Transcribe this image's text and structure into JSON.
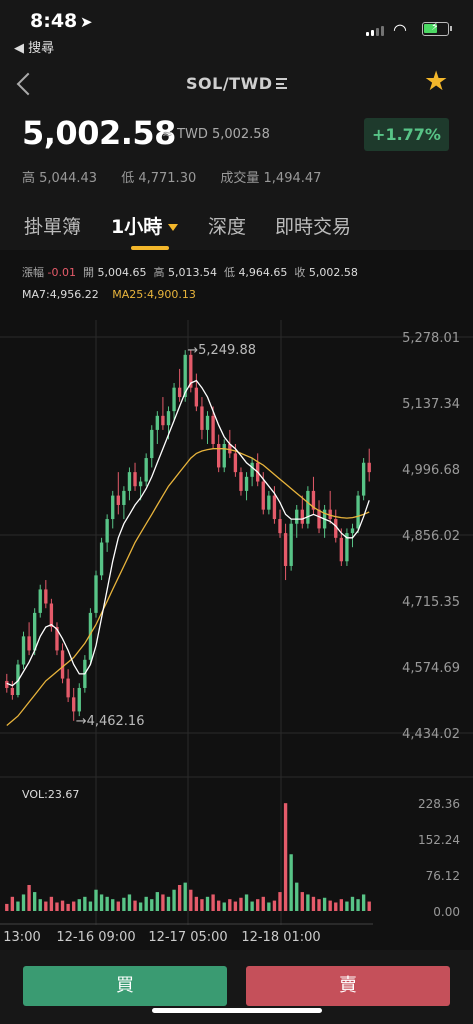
{
  "status": {
    "time": "8:48",
    "back_app": "◀ 搜尋"
  },
  "nav": {
    "pair": "SOL/TWD"
  },
  "ticker": {
    "price": "5,002.58",
    "approx": "≈ TWD 5,002.58",
    "change": "+1.77%",
    "high_label": "高",
    "high": "5,044.43",
    "low_label": "低",
    "low": "4,771.30",
    "volume_label": "成交量",
    "volume": "1,494.47"
  },
  "tabs": [
    {
      "label": "掛單簿"
    },
    {
      "label": "1小時"
    },
    {
      "label": "深度"
    },
    {
      "label": "即時交易"
    }
  ],
  "ohlc": {
    "change_label": "漲幅",
    "change": "-0.01",
    "open_label": "開",
    "open": "5,004.65",
    "high_label": "高",
    "high": "5,013.54",
    "low_label": "低",
    "low": "4,964.65",
    "close_label": "收",
    "close": "5,002.58"
  },
  "ma": {
    "ma7": "MA7:4,956.22",
    "ma25": "MA25:4,900.13"
  },
  "chart_data": {
    "type": "candlestick",
    "y_ticks": [
      "5,278.01",
      "5,137.34",
      "4,996.68",
      "4,856.02",
      "4,715.35",
      "4,574.69",
      "4,434.02"
    ],
    "y_range": [
      4434.02,
      5278.01
    ],
    "max_marker": "→5,249.88",
    "min_marker": "→4,462.16",
    "vol_label": "VOL:23.67",
    "vol_ticks": [
      "228.36",
      "152.24",
      "76.12",
      "0.00"
    ],
    "x_ticks": [
      "13:00",
      "12-16 09:00",
      "12-17 05:00",
      "12-18 01:00"
    ],
    "candles": [
      [
        4545,
        4560,
        4520,
        4530
      ],
      [
        4530,
        4545,
        4505,
        4515
      ],
      [
        4515,
        4590,
        4510,
        4580
      ],
      [
        4580,
        4650,
        4570,
        4640
      ],
      [
        4640,
        4670,
        4600,
        4610
      ],
      [
        4610,
        4700,
        4600,
        4690
      ],
      [
        4690,
        4750,
        4680,
        4740
      ],
      [
        4740,
        4760,
        4700,
        4710
      ],
      [
        4710,
        4720,
        4650,
        4660
      ],
      [
        4660,
        4670,
        4600,
        4610
      ],
      [
        4610,
        4625,
        4540,
        4550
      ],
      [
        4550,
        4570,
        4500,
        4510
      ],
      [
        4510,
        4530,
        4460,
        4480
      ],
      [
        4480,
        4540,
        4470,
        4530
      ],
      [
        4530,
        4600,
        4520,
        4590
      ],
      [
        4590,
        4700,
        4580,
        4690
      ],
      [
        4690,
        4780,
        4680,
        4770
      ],
      [
        4770,
        4850,
        4760,
        4840
      ],
      [
        4840,
        4900,
        4820,
        4890
      ],
      [
        4890,
        4950,
        4870,
        4940
      ],
      [
        4940,
        4990,
        4900,
        4920
      ],
      [
        4920,
        4960,
        4890,
        4950
      ],
      [
        4950,
        5000,
        4930,
        4990
      ],
      [
        4990,
        5010,
        4950,
        4960
      ],
      [
        4960,
        4980,
        4930,
        4970
      ],
      [
        4970,
        5030,
        4960,
        5020
      ],
      [
        5020,
        5090,
        5000,
        5080
      ],
      [
        5080,
        5120,
        5050,
        5110
      ],
      [
        5110,
        5150,
        5080,
        5090
      ],
      [
        5090,
        5130,
        5060,
        5120
      ],
      [
        5120,
        5180,
        5100,
        5170
      ],
      [
        5170,
        5210,
        5140,
        5150
      ],
      [
        5150,
        5250,
        5140,
        5240
      ],
      [
        5240,
        5250,
        5160,
        5170
      ],
      [
        5170,
        5200,
        5120,
        5130
      ],
      [
        5130,
        5150,
        5060,
        5080
      ],
      [
        5080,
        5120,
        5050,
        5110
      ],
      [
        5110,
        5130,
        5040,
        5050
      ],
      [
        5050,
        5070,
        4990,
        5000
      ],
      [
        5000,
        5060,
        4990,
        5050
      ],
      [
        5050,
        5080,
        5020,
        5030
      ],
      [
        5030,
        5050,
        4980,
        4990
      ],
      [
        4990,
        5000,
        4940,
        4950
      ],
      [
        4950,
        4990,
        4930,
        4980
      ],
      [
        4980,
        5020,
        4960,
        5010
      ],
      [
        5010,
        5030,
        4960,
        4970
      ],
      [
        4970,
        4990,
        4900,
        4910
      ],
      [
        4910,
        4950,
        4900,
        4940
      ],
      [
        4940,
        4960,
        4880,
        4890
      ],
      [
        4890,
        4910,
        4850,
        4860
      ],
      [
        4860,
        4880,
        4760,
        4790
      ],
      [
        4790,
        4890,
        4780,
        4880
      ],
      [
        4880,
        4920,
        4850,
        4910
      ],
      [
        4910,
        4940,
        4870,
        4880
      ],
      [
        4880,
        4960,
        4870,
        4950
      ],
      [
        4950,
        4980,
        4900,
        4910
      ],
      [
        4910,
        4930,
        4860,
        4870
      ],
      [
        4870,
        4920,
        4850,
        4910
      ],
      [
        4910,
        4950,
        4880,
        4890
      ],
      [
        4890,
        4910,
        4840,
        4850
      ],
      [
        4850,
        4870,
        4790,
        4800
      ],
      [
        4800,
        4870,
        4790,
        4860
      ],
      [
        4860,
        4880,
        4830,
        4870
      ],
      [
        4870,
        4950,
        4860,
        4940
      ],
      [
        4940,
        5020,
        4930,
        5010
      ],
      [
        5010,
        5040,
        4970,
        4990
      ]
    ],
    "ma7": [
      4540,
      4535,
      4545,
      4565,
      4585,
      4610,
      4640,
      4660,
      4665,
      4655,
      4635,
      4610,
      4580,
      4560,
      4560,
      4580,
      4620,
      4680,
      4740,
      4800,
      4850,
      4880,
      4900,
      4920,
      4935,
      4955,
      4980,
      5010,
      5040,
      5070,
      5100,
      5130,
      5160,
      5180,
      5185,
      5170,
      5150,
      5120,
      5090,
      5065,
      5050,
      5040,
      5025,
      5010,
      5000,
      4990,
      4975,
      4960,
      4945,
      4925,
      4900,
      4890,
      4890,
      4890,
      4895,
      4900,
      4895,
      4890,
      4885,
      4875,
      4860,
      4850,
      4850,
      4865,
      4895,
      4930
    ],
    "ma25": [
      4450,
      4460,
      4470,
      4485,
      4500,
      4515,
      4530,
      4545,
      4555,
      4565,
      4575,
      4585,
      4595,
      4610,
      4625,
      4645,
      4665,
      4690,
      4715,
      4740,
      4765,
      4790,
      4815,
      4840,
      4860,
      4880,
      4900,
      4920,
      4940,
      4960,
      4975,
      4990,
      5005,
      5020,
      5030,
      5035,
      5038,
      5040,
      5040,
      5040,
      5038,
      5035,
      5030,
      5025,
      5020,
      5012,
      5005,
      4995,
      4985,
      4975,
      4965,
      4955,
      4945,
      4935,
      4925,
      4915,
      4908,
      4902,
      4898,
      4895,
      4893,
      4892,
      4893,
      4896,
      4900,
      4905
    ],
    "volumes": [
      15,
      30,
      20,
      35,
      55,
      40,
      25,
      20,
      30,
      18,
      22,
      15,
      20,
      25,
      30,
      20,
      45,
      35,
      30,
      25,
      20,
      28,
      35,
      22,
      18,
      30,
      25,
      40,
      35,
      30,
      45,
      55,
      60,
      45,
      30,
      25,
      30,
      35,
      22,
      18,
      25,
      20,
      28,
      35,
      20,
      25,
      30,
      18,
      22,
      40,
      228,
      120,
      60,
      40,
      35,
      30,
      25,
      28,
      22,
      18,
      25,
      20,
      30,
      25,
      35,
      20
    ]
  },
  "actions": {
    "buy": "買",
    "sell": "賣"
  },
  "colors": {
    "up": "#58c487",
    "down": "#e55b6a",
    "ma7": "#ffffff",
    "ma25": "#e8b43c",
    "accent": "#f3b72b"
  }
}
